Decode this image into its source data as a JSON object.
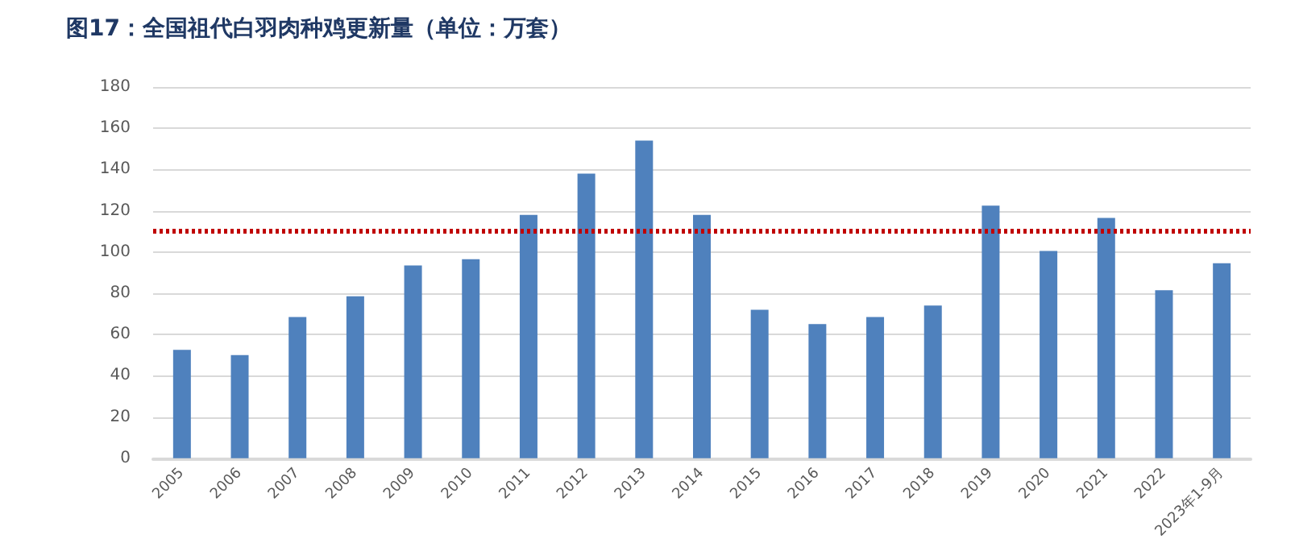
{
  "chart_data": {
    "type": "bar",
    "title": "图17：全国祖代白羽肉种鸡更新量（单位：万套）",
    "categories": [
      "2005",
      "2006",
      "2007",
      "2008",
      "2009",
      "2010",
      "2011",
      "2012",
      "2013",
      "2014",
      "2015",
      "2016",
      "2017",
      "2018",
      "2019",
      "2020",
      "2021",
      "2022",
      "2023年1-9月"
    ],
    "values": [
      52.5,
      50,
      68.5,
      78.5,
      93.5,
      96.5,
      118,
      138,
      154,
      118,
      72,
      65,
      68.5,
      74,
      122.5,
      100.5,
      116.5,
      81.5,
      94.5
    ],
    "color": "#4f81bd",
    "ylim": [
      0,
      180
    ],
    "yticks": [
      0,
      20,
      40,
      60,
      80,
      100,
      120,
      140,
      160,
      180
    ],
    "grid": "y",
    "ref_lines": [
      {
        "axis": "y",
        "value": 110.3,
        "color": "#c00000",
        "line_style": "dotted"
      }
    ]
  }
}
